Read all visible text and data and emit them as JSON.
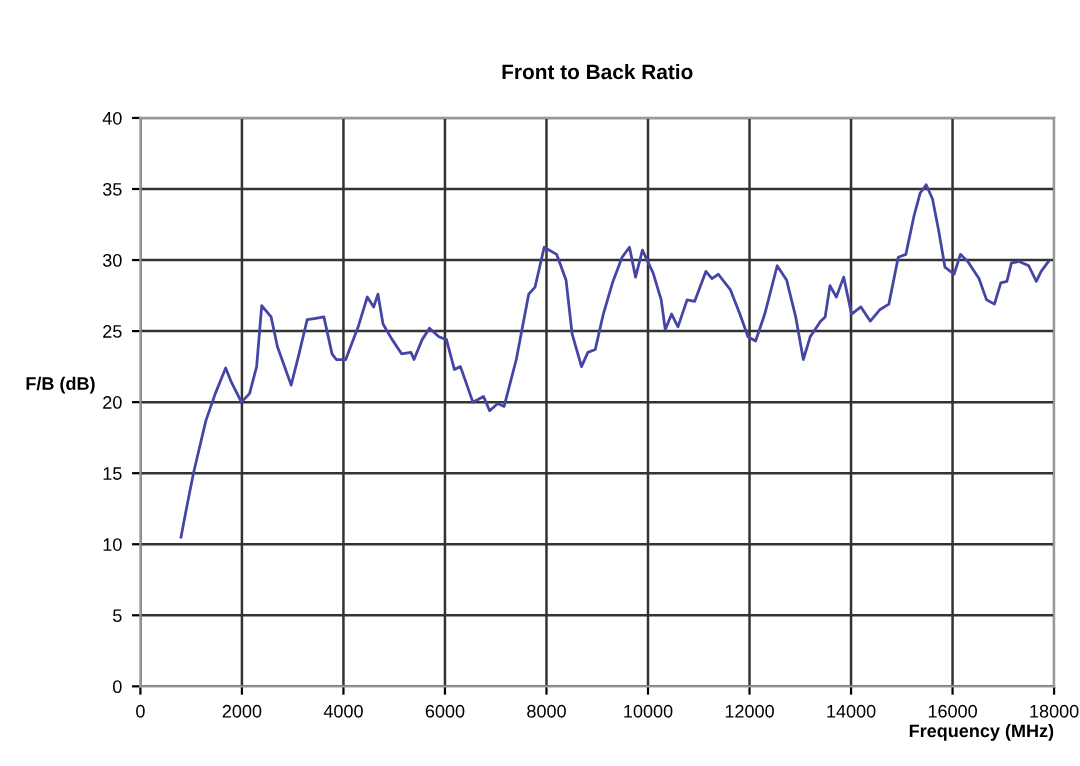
{
  "chart_data": {
    "type": "line",
    "title": "Front to Back Ratio",
    "xlabel": "Frequency (MHz)",
    "ylabel": "F/B (dB)",
    "xlim": [
      0,
      18000
    ],
    "xticks": [
      0,
      2000,
      4000,
      6000,
      8000,
      10000,
      12000,
      14000,
      16000,
      18000
    ],
    "ylim": [
      0,
      40
    ],
    "yticks": [
      0,
      5,
      10,
      15,
      20,
      25,
      30,
      35,
      40
    ],
    "grid": true,
    "marker": "none",
    "line_style": "solid",
    "series": [
      {
        "color": "#4545a5",
        "x": [
          800,
          890,
          1045,
          1290,
          1475,
          1680,
          1780,
          1990,
          2150,
          2290,
          2390,
          2575,
          2700,
          2820,
          2970,
          3125,
          3285,
          3455,
          3615,
          3775,
          3860,
          4045,
          4290,
          4470,
          4595,
          4680,
          4780,
          4960,
          5145,
          5330,
          5390,
          5550,
          5695,
          5880,
          6030,
          6185,
          6305,
          6550,
          6760,
          6880,
          7040,
          7165,
          7405,
          7650,
          7775,
          7955,
          8200,
          8385,
          8505,
          8690,
          8815,
          8960,
          9120,
          9300,
          9490,
          9635,
          9755,
          9890,
          10100,
          10260,
          10340,
          10465,
          10590,
          10770,
          10920,
          11140,
          11260,
          11385,
          11625,
          11810,
          11970,
          12120,
          12300,
          12545,
          12730,
          12910,
          13060,
          13195,
          13400,
          13490,
          13585,
          13710,
          13855,
          14010,
          14195,
          14380,
          14565,
          14745,
          14930,
          15080,
          15240,
          15360,
          15480,
          15605,
          15725,
          15850,
          16030,
          16155,
          16300,
          16520,
          16670,
          16825,
          16950,
          17070,
          17160,
          17315,
          17500,
          17650,
          17745,
          17890
        ],
        "values": [
          10.5,
          12.2,
          15,
          18.7,
          20.6,
          22.4,
          21.5,
          20.0,
          20.6,
          22.5,
          26.8,
          26,
          23.9,
          22.7,
          21.2,
          23.4,
          25.8,
          25.9,
          26,
          23.4,
          23,
          23,
          25.3,
          27.4,
          26.7,
          27.6,
          25.5,
          24.4,
          23.4,
          23.5,
          23,
          24.4,
          25.2,
          24.6,
          24.4,
          22.3,
          22.5,
          20.0,
          20.4,
          19.4,
          19.9,
          19.7,
          23,
          27.6,
          28.1,
          30.9,
          30.4,
          28.6,
          24.8,
          22.5,
          23.5,
          23.7,
          26.2,
          28.4,
          30.2,
          30.9,
          28.8,
          30.7,
          29.1,
          27.2,
          25.1,
          26.2,
          25.3,
          27.2,
          27.1,
          29.2,
          28.7,
          29,
          27.9,
          26.2,
          24.6,
          24.3,
          26.2,
          29.6,
          28.6,
          26,
          23,
          24.6,
          25.7,
          26,
          28.2,
          27.4,
          28.8,
          26.2,
          26.7,
          25.7,
          26.5,
          26.9,
          30.2,
          30.4,
          33.1,
          34.7,
          35.3,
          34.3,
          32.1,
          29.5,
          29,
          30.4,
          29.9,
          28.7,
          27.2,
          26.9,
          28.4,
          28.5,
          29.8,
          29.9,
          29.6,
          28.5,
          29.2,
          29.9
        ]
      }
    ]
  }
}
